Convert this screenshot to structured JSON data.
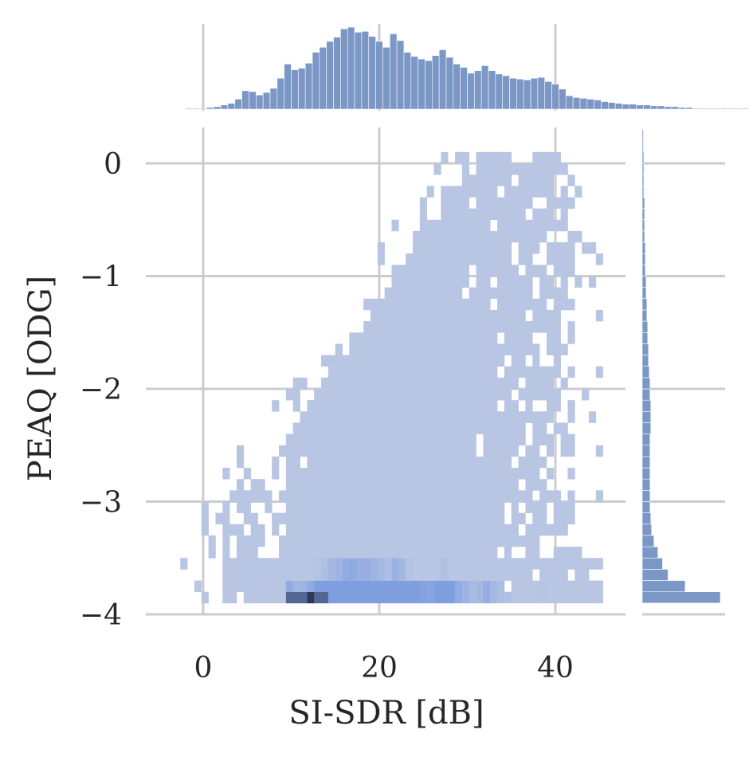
{
  "chart_data": {
    "type": "heatmap",
    "title": "",
    "xlabel": "SI-SDR [dB]",
    "ylabel": "PEAQ [ODG]",
    "xlim": [
      -6.5,
      48
    ],
    "ylim": [
      -4.1,
      0.35
    ],
    "xticks": [
      0,
      20,
      40
    ],
    "xtick_labels": [
      "0",
      "20",
      "40"
    ],
    "yticks": [
      0,
      -1,
      -2,
      -3,
      -4
    ],
    "ytick_labels": [
      "0",
      "−1",
      "−2",
      "−3",
      "−4"
    ],
    "grid": true,
    "colors": {
      "bar": "#7b97c6",
      "cell_light": "#b8c5e3",
      "cell_mid": "#7e9ee0",
      "cell_dark": "#2e3a55",
      "grid": "#cccccc",
      "text": "#262626"
    },
    "x_marginal_histogram": {
      "bin_start": -2.0,
      "bin_width": 0.8,
      "counts": [
        0.01,
        0.01,
        0.01,
        0.02,
        0.03,
        0.05,
        0.07,
        0.12,
        0.22,
        0.21,
        0.17,
        0.2,
        0.25,
        0.37,
        0.54,
        0.47,
        0.49,
        0.55,
        0.68,
        0.74,
        0.81,
        0.86,
        0.96,
        0.98,
        0.92,
        0.93,
        0.87,
        0.81,
        0.74,
        0.9,
        0.82,
        0.68,
        0.63,
        0.6,
        0.58,
        0.64,
        0.71,
        0.62,
        0.54,
        0.5,
        0.43,
        0.46,
        0.52,
        0.46,
        0.42,
        0.4,
        0.37,
        0.36,
        0.35,
        0.37,
        0.38,
        0.33,
        0.3,
        0.24,
        0.16,
        0.14,
        0.13,
        0.12,
        0.11,
        0.09,
        0.08,
        0.07,
        0.06,
        0.06,
        0.05,
        0.05,
        0.04,
        0.04,
        0.03,
        0.03,
        0.02,
        0.02,
        0.01,
        0.01,
        0.01,
        0.01,
        0.01,
        0.01,
        0.01,
        0.01
      ]
    },
    "y_marginal_histogram": {
      "bin_start": -3.9,
      "bin_width": 0.1,
      "counts": [
        1.0,
        0.55,
        0.33,
        0.26,
        0.2,
        0.15,
        0.12,
        0.11,
        0.1,
        0.1,
        0.1,
        0.1,
        0.1,
        0.1,
        0.1,
        0.11,
        0.11,
        0.11,
        0.1,
        0.1,
        0.09,
        0.08,
        0.08,
        0.07,
        0.07,
        0.06,
        0.06,
        0.05,
        0.05,
        0.04,
        0.04,
        0.04,
        0.03,
        0.03,
        0.03,
        0.03,
        0.02,
        0.02,
        0.02,
        0.02,
        0.01,
        0.01
      ]
    },
    "joint_histogram": {
      "x_bin_width": 0.8,
      "y_bin_width": 0.1,
      "x_extent": [
        -5.0,
        45.0
      ],
      "y_extent": [
        -3.9,
        0.1
      ],
      "dense_region_x": [
        7.0,
        30.0
      ],
      "peak": {
        "x": 12.0,
        "y": -3.85
      }
    }
  }
}
